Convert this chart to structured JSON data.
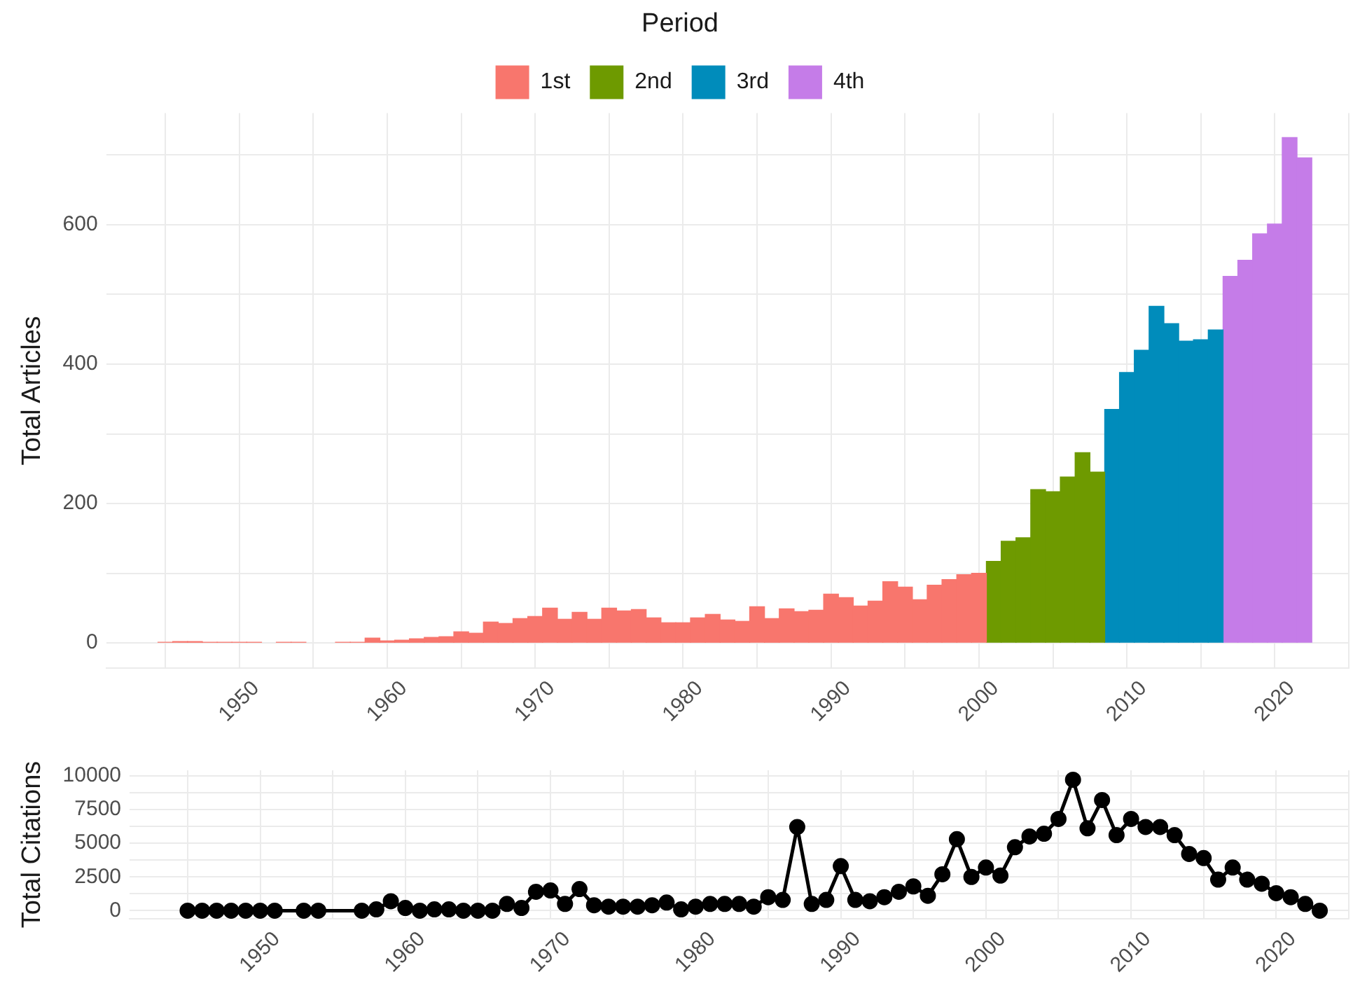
{
  "chart_data": [
    {
      "type": "bar",
      "ylabel": "Total Articles",
      "legend_title": "Period",
      "legend": "top",
      "grid": true,
      "xlim": [
        1941,
        2025
      ],
      "xticks": [
        {
          "value": 1945,
          "label": null
        },
        1950,
        {
          "value": 1955,
          "label": null
        },
        1960,
        {
          "value": 1965,
          "label": null
        },
        1970,
        {
          "value": 1975,
          "label": null
        },
        1980,
        {
          "value": 1985,
          "label": null
        },
        1990,
        {
          "value": 1995,
          "label": null
        },
        2000,
        {
          "value": 2005,
          "label": null
        },
        2010,
        {
          "value": 2015,
          "label": null
        },
        2020,
        {
          "value": 2025,
          "label": null
        }
      ],
      "ylim": [
        -36,
        760
      ],
      "yticks": [
        0,
        {
          "value": 100,
          "label": null
        },
        200,
        {
          "value": 300,
          "label": null
        },
        400,
        {
          "value": 500,
          "label": null
        },
        600,
        {
          "value": 700,
          "label": null
        }
      ],
      "series": [
        {
          "name": "1st",
          "color": "#f8766d",
          "x": [
            1945,
            1946,
            1947,
            1948,
            1949,
            1950,
            1951,
            1953,
            1954,
            1957,
            1958,
            1959,
            1960,
            1961,
            1962,
            1963,
            1964,
            1965,
            1966,
            1967,
            1968,
            1969,
            1970,
            1971,
            1972,
            1973,
            1974,
            1975,
            1976,
            1977,
            1978,
            1979,
            1980,
            1981,
            1982,
            1983,
            1984,
            1985,
            1986,
            1987,
            1988,
            1989,
            1990,
            1991,
            1992,
            1993,
            1994,
            1995,
            1996,
            1997,
            1998,
            1999,
            2000
          ],
          "values": [
            1,
            2,
            2,
            1,
            1,
            1,
            1,
            1,
            1,
            1,
            1,
            7,
            3,
            4,
            6,
            8,
            9,
            16,
            14,
            30,
            28,
            35,
            38,
            50,
            34,
            44,
            34,
            50,
            46,
            48,
            36,
            29,
            29,
            36,
            41,
            33,
            31,
            52,
            35,
            49,
            45,
            47,
            70,
            65,
            53,
            60,
            88,
            80,
            62,
            83,
            91,
            98,
            100
          ]
        },
        {
          "name": "2nd",
          "color": "#6e9a00",
          "x": [
            2001,
            2002,
            2003,
            2004,
            2005,
            2006,
            2007,
            2008
          ],
          "values": [
            117,
            146,
            151,
            220,
            217,
            238,
            273,
            245
          ]
        },
        {
          "name": "3rd",
          "color": "#008cbb",
          "x": [
            2009,
            2010,
            2011,
            2012,
            2013,
            2014,
            2015,
            2016
          ],
          "values": [
            335,
            388,
            420,
            483,
            458,
            433,
            435,
            449
          ]
        },
        {
          "name": "4th",
          "color": "#c57ce8",
          "x": [
            2017,
            2018,
            2019,
            2020,
            2021,
            2022
          ],
          "values": [
            526,
            549,
            587,
            601,
            725,
            696
          ]
        }
      ]
    },
    {
      "type": "line",
      "ylabel": "Total Citations",
      "grid": true,
      "marker": "circle",
      "line_style": "solid",
      "xlim": [
        1941,
        2025
      ],
      "xticks": [
        {
          "value": 1945,
          "label": null
        },
        1950,
        {
          "value": 1955,
          "label": null
        },
        1960,
        {
          "value": 1965,
          "label": null
        },
        1970,
        {
          "value": 1975,
          "label": null
        },
        1980,
        {
          "value": 1985,
          "label": null
        },
        1990,
        {
          "value": 1995,
          "label": null
        },
        2000,
        {
          "value": 2005,
          "label": null
        },
        2010,
        {
          "value": 2015,
          "label": null
        },
        2020,
        {
          "value": 2025,
          "label": null
        }
      ],
      "ylim": [
        -600,
        10400
      ],
      "yticks": [
        0,
        {
          "value": 1250,
          "label": null
        },
        2500,
        {
          "value": 3750,
          "label": null
        },
        5000,
        {
          "value": 6250,
          "label": null
        },
        7500,
        {
          "value": 8750,
          "label": null
        },
        10000
      ],
      "series": [
        {
          "color": "#000000",
          "x": [
            1945,
            1946,
            1947,
            1948,
            1949,
            1950,
            1951,
            1953,
            1954,
            1957,
            1958,
            1959,
            1960,
            1961,
            1962,
            1963,
            1964,
            1965,
            1966,
            1967,
            1968,
            1969,
            1970,
            1971,
            1972,
            1973,
            1974,
            1975,
            1976,
            1977,
            1978,
            1979,
            1980,
            1981,
            1982,
            1983,
            1984,
            1985,
            1986,
            1987,
            1988,
            1989,
            1990,
            1991,
            1992,
            1993,
            1994,
            1995,
            1996,
            1997,
            1998,
            1999,
            2000,
            2001,
            2002,
            2003,
            2004,
            2005,
            2006,
            2007,
            2008,
            2009,
            2010,
            2011,
            2012,
            2013,
            2014,
            2015,
            2016,
            2017,
            2018,
            2019,
            2020,
            2021,
            2022,
            2023
          ],
          "values": [
            0,
            0,
            0,
            0,
            0,
            0,
            0,
            0,
            0,
            0,
            100,
            700,
            200,
            0,
            100,
            100,
            0,
            0,
            0,
            500,
            200,
            1400,
            1500,
            500,
            1600,
            400,
            300,
            300,
            300,
            400,
            600,
            100,
            300,
            500,
            500,
            500,
            300,
            1000,
            800,
            6200,
            500,
            800,
            3300,
            800,
            700,
            1000,
            1400,
            1800,
            1100,
            2700,
            5300,
            2500,
            3200,
            2600,
            4700,
            5500,
            5700,
            6800,
            9700,
            6100,
            8200,
            5600,
            6800,
            6200,
            6200,
            5600,
            4200,
            3900,
            2300,
            3200,
            2300,
            2000,
            1300,
            1000,
            500,
            0
          ]
        }
      ]
    }
  ]
}
